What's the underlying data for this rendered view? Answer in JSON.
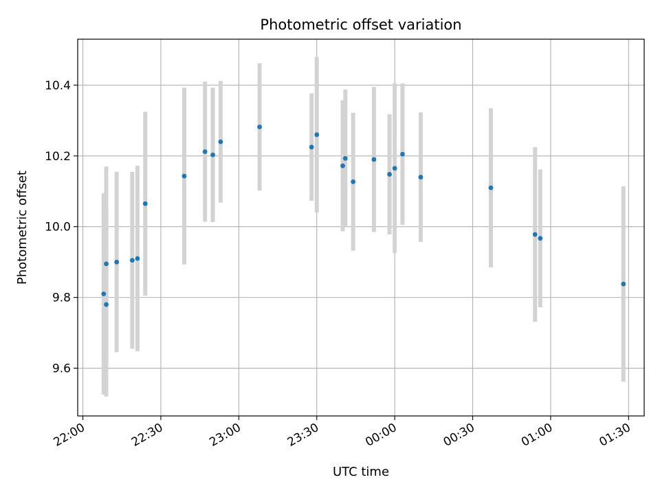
{
  "chart_data": {
    "type": "scatter",
    "title": "Photometric offset variation",
    "xlabel": "UTC time",
    "ylabel": "Photometric offset",
    "x_axis_type": "time",
    "xlim": [
      "21:58",
      "01:36"
    ],
    "ylim": [
      9.465,
      10.53
    ],
    "grid": true,
    "legend": "none",
    "x_ticks": [
      {
        "time": "22:00",
        "label": "22:00"
      },
      {
        "time": "22:30",
        "label": "22:30"
      },
      {
        "time": "23:00",
        "label": "23:00"
      },
      {
        "time": "23:30",
        "label": "23:30"
      },
      {
        "time": "00:00",
        "label": "00:00"
      },
      {
        "time": "00:30",
        "label": "00:30"
      },
      {
        "time": "01:00",
        "label": "01:00"
      },
      {
        "time": "01:30",
        "label": "01:30"
      }
    ],
    "y_ticks": [
      9.6,
      9.8,
      10.0,
      10.2,
      10.4
    ],
    "y_tick_labels": [
      "9.6",
      "9.8",
      "10.0",
      "10.2",
      "10.4"
    ],
    "marker_color": "#1f77b4",
    "errorbar_color": "#d3d3d3",
    "series": [
      {
        "points": [
          {
            "x": "22:08",
            "y": 9.81,
            "err": 0.285
          },
          {
            "x": "22:09",
            "y": 9.78,
            "err": 0.26
          },
          {
            "x": "22:09",
            "y": 9.895,
            "err": 0.275
          },
          {
            "x": "22:13",
            "y": 9.9,
            "err": 0.255
          },
          {
            "x": "22:19",
            "y": 9.905,
            "err": 0.25
          },
          {
            "x": "22:21",
            "y": 9.91,
            "err": 0.262
          },
          {
            "x": "22:24",
            "y": 10.065,
            "err": 0.26
          },
          {
            "x": "22:39",
            "y": 10.143,
            "err": 0.25
          },
          {
            "x": "22:47",
            "y": 10.212,
            "err": 0.198
          },
          {
            "x": "22:50",
            "y": 10.203,
            "err": 0.19
          },
          {
            "x": "22:53",
            "y": 10.24,
            "err": 0.172
          },
          {
            "x": "23:08",
            "y": 10.282,
            "err": 0.18
          },
          {
            "x": "23:28",
            "y": 10.225,
            "err": 0.152
          },
          {
            "x": "23:30",
            "y": 10.26,
            "err": 0.22
          },
          {
            "x": "23:40",
            "y": 10.172,
            "err": 0.185
          },
          {
            "x": "23:41",
            "y": 10.193,
            "err": 0.195
          },
          {
            "x": "23:44",
            "y": 10.127,
            "err": 0.195
          },
          {
            "x": "23:52",
            "y": 10.19,
            "err": 0.205
          },
          {
            "x": "23:58",
            "y": 10.148,
            "err": 0.17
          },
          {
            "x": "00:00",
            "y": 10.165,
            "err": 0.24
          },
          {
            "x": "00:03",
            "y": 10.205,
            "err": 0.2
          },
          {
            "x": "00:10",
            "y": 10.14,
            "err": 0.183
          },
          {
            "x": "00:37",
            "y": 10.11,
            "err": 0.225
          },
          {
            "x": "00:54",
            "y": 9.978,
            "err": 0.247
          },
          {
            "x": "00:56",
            "y": 9.967,
            "err": 0.195
          },
          {
            "x": "01:28",
            "y": 9.838,
            "err": 0.276
          }
        ]
      }
    ]
  }
}
